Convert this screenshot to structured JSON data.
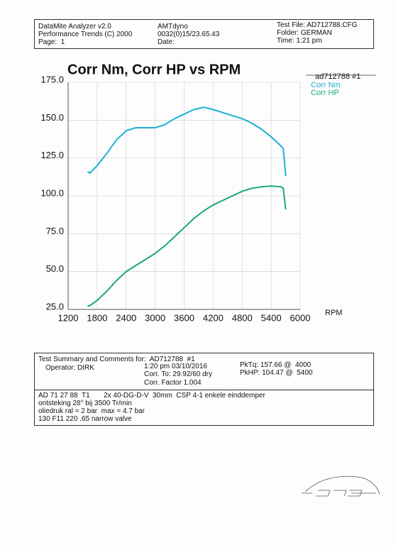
{
  "header": {
    "left": [
      "DataMite Analyzer v2.0",
      "Performance Trends (C) 2000",
      "Page:  1"
    ],
    "middle": [
      "AMTdyno",
      "0032(0)15/23.65.43",
      "Date:"
    ],
    "right": [
      "Test File: AD712788.CFG",
      "Folder: GERMAN",
      "Time: 1:21 pm"
    ]
  },
  "chart_data": {
    "type": "line",
    "title": "Corr Nm, Corr HP vs RPM",
    "legend_title": "ad712788  #1",
    "x_label": "RPM",
    "x": [
      1600,
      1650,
      1800,
      2000,
      2200,
      2400,
      2600,
      2800,
      3000,
      3200,
      3400,
      3600,
      3800,
      4000,
      4200,
      4400,
      4600,
      4800,
      5000,
      5200,
      5400,
      5600,
      5650,
      5700
    ],
    "series": [
      {
        "name": "Corr Nm",
        "color": "#1ab0d4",
        "values": [
          116,
          115,
          120,
          128,
          137,
          143,
          145,
          145,
          145,
          147,
          151,
          154,
          157,
          158.5,
          157,
          155,
          153,
          151,
          148,
          144,
          139,
          133,
          131,
          113
        ]
      },
      {
        "name": "Corr HP",
        "color": "#1aa87a",
        "values": [
          27,
          27.5,
          31,
          37,
          44,
          50,
          54,
          58,
          62,
          67,
          73,
          79,
          85,
          90,
          94,
          97,
          100,
          103,
          105,
          106,
          106.5,
          106,
          105,
          91
        ]
      }
    ],
    "xlim": [
      1200,
      6000
    ],
    "xticks": [
      1200,
      1800,
      2400,
      3000,
      3600,
      4200,
      4800,
      5400,
      6000
    ],
    "ylim": [
      25,
      175
    ],
    "yticks": [
      {
        "value": 25,
        "label": "25.0"
      },
      {
        "value": 50,
        "label": "50.0"
      },
      {
        "value": 75,
        "label": "75.0"
      },
      {
        "value": 100,
        "label": "100.0"
      },
      {
        "value": 125,
        "label": "125.0"
      },
      {
        "value": 150,
        "label": "150.0"
      },
      {
        "value": 175,
        "label": "175.0"
      }
    ],
    "grid": true
  },
  "summary": {
    "heading": "Test Summary and Comments for:  AD712788  #1",
    "operator": "Operator: DIRK",
    "time": "1:20 pm 03/10/2016",
    "corr_to": "Corr. To: 29.92/60 dry",
    "corr_factor": "Corr. Factor 1.004",
    "pk_tq": "PkTq: 157.66 @  4000",
    "pk_hp": "PkHP: 104.47 @  5400"
  },
  "notes": [
    "AD 71 27 88  T1       2x 40-DG-D-V  30mm  CSP 4-1 enkele einddemper",
    "ontsteking 28° bij 3500 Tr/min",
    "oliedruk ral = 2 bar  max = 4.7 bar",
    "130 F11 220 .65 narrow valve"
  ]
}
